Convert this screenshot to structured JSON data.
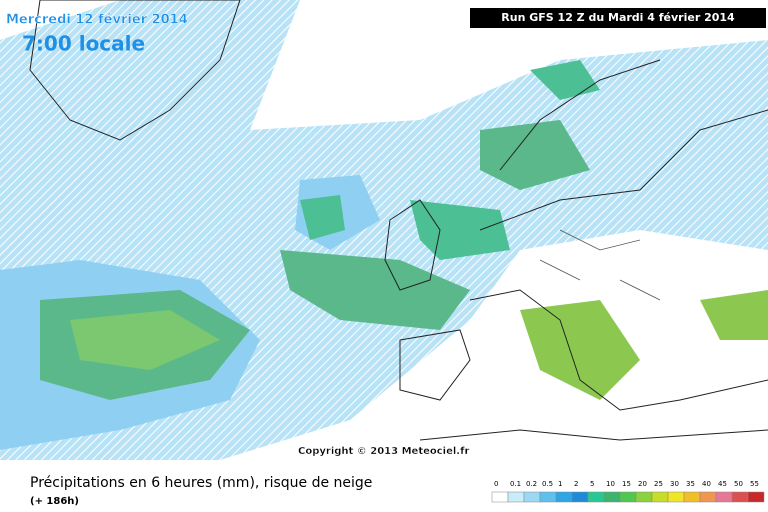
{
  "header": {
    "date": "Mercredi 12 février 2014",
    "time": "7:00 locale",
    "run": "Run GFS 12 Z du Mardi 4 février 2014"
  },
  "map": {
    "copyright": "Copyright © 2013 Meteociel.fr"
  },
  "footer": {
    "title": "Précipitations en 6 heures (mm), risque de neige",
    "lead": "(+ 186h)"
  },
  "legend": {
    "items": [
      {
        "label": "0",
        "color": "#ffffff"
      },
      {
        "label": "0.1",
        "color": "#c8ecfa"
      },
      {
        "label": "0.2",
        "color": "#9ad8f4"
      },
      {
        "label": "0.5",
        "color": "#5ec0ee"
      },
      {
        "label": "1",
        "color": "#2ea6e6"
      },
      {
        "label": "2",
        "color": "#1e8ad8"
      },
      {
        "label": "5",
        "color": "#28c896"
      },
      {
        "label": "10",
        "color": "#3cb46e"
      },
      {
        "label": "15",
        "color": "#50c850"
      },
      {
        "label": "20",
        "color": "#8cd23c"
      },
      {
        "label": "25",
        "color": "#c8dc28"
      },
      {
        "label": "30",
        "color": "#f0e628"
      },
      {
        "label": "35",
        "color": "#f0be28"
      },
      {
        "label": "40",
        "color": "#f09650"
      },
      {
        "label": "45",
        "color": "#e67896"
      },
      {
        "label": "50",
        "color": "#dc5050"
      },
      {
        "label": "55",
        "color": "#c82828"
      }
    ]
  }
}
